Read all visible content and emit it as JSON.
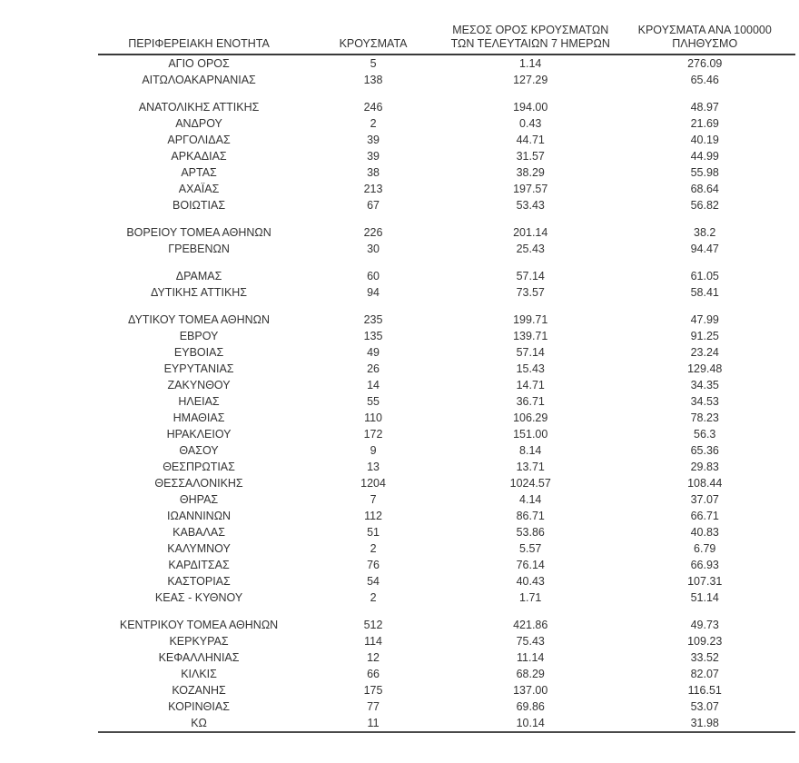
{
  "table": {
    "columns": [
      {
        "label": "ΠΕΡΙΦΕΡΕΙΑΚΗ ΕΝΟΤΗΤΑ",
        "lines": [
          "ΠΕΡΙΦΕΡΕΙΑΚΗ ΕΝΟΤΗΤΑ"
        ]
      },
      {
        "label": "ΚΡΟΥΣΜΑΤΑ",
        "lines": [
          "ΚΡΟΥΣΜΑΤΑ"
        ]
      },
      {
        "label": "ΜΕΣΟΣ ΟΡΟΣ ΚΡΟΥΣΜΑΤΩΝ ΤΩΝ ΤΕΛΕΥΤΑΙΩΝ 7 ΗΜΕΡΩΝ",
        "lines": [
          "ΜΕΣΟΣ ΟΡΟΣ ΚΡΟΥΣΜΑΤΩΝ",
          "ΤΩΝ ΤΕΛΕΥΤΑΙΩΝ 7 ΗΜΕΡΩΝ"
        ]
      },
      {
        "label": "ΚΡΟΥΣΜΑΤΑ ΑΝΑ 100000 ΠΛΗΘΥΣΜΟ",
        "lines": [
          "ΚΡΟΥΣΜΑΤΑ ΑΝΑ 100000",
          "ΠΛΗΘΥΣΜΟ"
        ]
      }
    ],
    "text_color": "#333333",
    "rule_color": "#3a3a3a",
    "groups": [
      {
        "rows": [
          [
            "ΑΓΙΟ ΟΡΟΣ",
            "5",
            "1.14",
            "276.09"
          ],
          [
            "ΑΙΤΩΛΟΑΚΑΡΝΑΝΙΑΣ",
            "138",
            "127.29",
            "65.46"
          ]
        ]
      },
      {
        "rows": [
          [
            "ΑΝΑΤΟΛΙΚΗΣ ΑΤΤΙΚΗΣ",
            "246",
            "194.00",
            "48.97"
          ],
          [
            "ΑΝΔΡΟΥ",
            "2",
            "0.43",
            "21.69"
          ],
          [
            "ΑΡΓΟΛΙΔΑΣ",
            "39",
            "44.71",
            "40.19"
          ],
          [
            "ΑΡΚΑΔΙΑΣ",
            "39",
            "31.57",
            "44.99"
          ],
          [
            "ΑΡΤΑΣ",
            "38",
            "38.29",
            "55.98"
          ],
          [
            "ΑΧΑΪΑΣ",
            "213",
            "197.57",
            "68.64"
          ],
          [
            "ΒΟΙΩΤΙΑΣ",
            "67",
            "53.43",
            "56.82"
          ]
        ]
      },
      {
        "rows": [
          [
            "ΒΟΡΕΙΟΥ ΤΟΜΕΑ ΑΘΗΝΩΝ",
            "226",
            "201.14",
            "38.2"
          ],
          [
            "ΓΡΕΒΕΝΩΝ",
            "30",
            "25.43",
            "94.47"
          ]
        ]
      },
      {
        "rows": [
          [
            "ΔΡΑΜΑΣ",
            "60",
            "57.14",
            "61.05"
          ],
          [
            "ΔΥΤΙΚΗΣ ΑΤΤΙΚΗΣ",
            "94",
            "73.57",
            "58.41"
          ]
        ]
      },
      {
        "rows": [
          [
            "ΔΥΤΙΚΟΥ ΤΟΜΕΑ ΑΘΗΝΩΝ",
            "235",
            "199.71",
            "47.99"
          ],
          [
            "ΕΒΡΟΥ",
            "135",
            "139.71",
            "91.25"
          ],
          [
            "ΕΥΒΟΙΑΣ",
            "49",
            "57.14",
            "23.24"
          ],
          [
            "ΕΥΡΥΤΑΝΙΑΣ",
            "26",
            "15.43",
            "129.48"
          ],
          [
            "ΖΑΚΥΝΘΟΥ",
            "14",
            "14.71",
            "34.35"
          ],
          [
            "ΗΛΕΙΑΣ",
            "55",
            "36.71",
            "34.53"
          ],
          [
            "ΗΜΑΘΙΑΣ",
            "110",
            "106.29",
            "78.23"
          ],
          [
            "ΗΡΑΚΛΕΙΟΥ",
            "172",
            "151.00",
            "56.3"
          ],
          [
            "ΘΑΣΟΥ",
            "9",
            "8.14",
            "65.36"
          ],
          [
            "ΘΕΣΠΡΩΤΙΑΣ",
            "13",
            "13.71",
            "29.83"
          ],
          [
            "ΘΕΣΣΑΛΟΝΙΚΗΣ",
            "1204",
            "1024.57",
            "108.44"
          ],
          [
            "ΘΗΡΑΣ",
            "7",
            "4.14",
            "37.07"
          ],
          [
            "ΙΩΑΝΝΙΝΩΝ",
            "112",
            "86.71",
            "66.71"
          ],
          [
            "ΚΑΒΑΛΑΣ",
            "51",
            "53.86",
            "40.83"
          ],
          [
            "ΚΑΛΥΜΝΟΥ",
            "2",
            "5.57",
            "6.79"
          ],
          [
            "ΚΑΡΔΙΤΣΑΣ",
            "76",
            "76.14",
            "66.93"
          ],
          [
            "ΚΑΣΤΟΡΙΑΣ",
            "54",
            "40.43",
            "107.31"
          ],
          [
            "ΚΕΑΣ - ΚΥΘΝΟΥ",
            "2",
            "1.71",
            "51.14"
          ]
        ]
      },
      {
        "rows": [
          [
            "ΚΕΝΤΡΙΚΟΥ ΤΟΜΕΑ ΑΘΗΝΩΝ",
            "512",
            "421.86",
            "49.73"
          ],
          [
            "ΚΕΡΚΥΡΑΣ",
            "114",
            "75.43",
            "109.23"
          ],
          [
            "ΚΕΦΑΛΛΗΝΙΑΣ",
            "12",
            "11.14",
            "33.52"
          ],
          [
            "ΚΙΛΚΙΣ",
            "66",
            "68.29",
            "82.07"
          ],
          [
            "ΚΟΖΑΝΗΣ",
            "175",
            "137.00",
            "116.51"
          ],
          [
            "ΚΟΡΙΝΘΙΑΣ",
            "77",
            "69.86",
            "53.07"
          ],
          [
            "ΚΩ",
            "11",
            "10.14",
            "31.98"
          ]
        ]
      }
    ]
  }
}
